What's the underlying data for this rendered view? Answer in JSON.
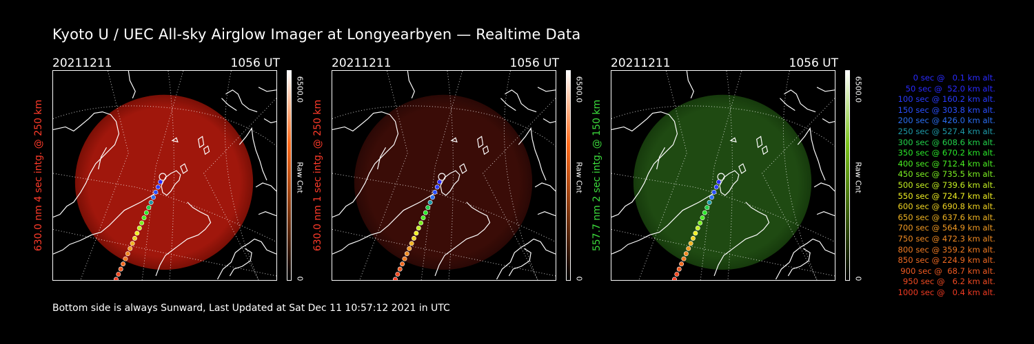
{
  "title": "Kyoto U / UEC All-sky Airglow Imager at Longyearbyen — Realtime Data",
  "footer": "Bottom side is always Sunward, Last Updated at Sat Dec 11 10:57:12 2021 in UTC",
  "panels": [
    {
      "date": "20211211",
      "time": "1056 UT",
      "ylabel": "630.0 nm 4 sec intg. @ 250 km",
      "label_color": "#ff3b2a",
      "cbar_max": "6500.0",
      "cbar_unit": "Raw Cnt",
      "cbar_min": "0",
      "cbar_top": "#ffffff",
      "cbar_mid": "#ff6a1a",
      "cbar_bottom": "#000000",
      "disk_color": "#a0170c",
      "disk_edge": "#7a0f06"
    },
    {
      "date": "20211211",
      "time": "1056 UT",
      "ylabel": "630.0 nm 1 sec intg. @ 250 km",
      "label_color": "#ff3b2a",
      "cbar_max": "6500.0",
      "cbar_unit": "Raw Cnt",
      "cbar_min": "0",
      "cbar_top": "#ffffff",
      "cbar_mid": "#ff6a1a",
      "cbar_bottom": "#000000",
      "disk_color": "#3a0c07",
      "disk_edge": "#2a0805"
    },
    {
      "date": "20211211",
      "time": "1056 UT",
      "ylabel": "557.7 nm 2 sec intg. @ 150 km",
      "label_color": "#3cdc3c",
      "cbar_max": "6500.0",
      "cbar_unit": "Raw Cnt",
      "cbar_min": "0",
      "cbar_top": "#ffffff",
      "cbar_mid": "#7ac21a",
      "cbar_bottom": "#000000",
      "disk_color": "#1f4a12",
      "disk_edge": "#163a0c"
    }
  ],
  "legend": [
    {
      "text": "   0 sec @   0.1 km alt.",
      "color": "#2a2aff"
    },
    {
      "text": "  50 sec @  52.0 km alt.",
      "color": "#2a2aff"
    },
    {
      "text": " 100 sec @ 160.2 km alt.",
      "color": "#2a3cff"
    },
    {
      "text": " 150 sec @ 303.8 km alt.",
      "color": "#2a50ff"
    },
    {
      "text": " 200 sec @ 426.0 km alt.",
      "color": "#2a6ef0"
    },
    {
      "text": " 250 sec @ 527.4 km alt.",
      "color": "#1e9aa8"
    },
    {
      "text": " 300 sec @ 608.6 km alt.",
      "color": "#22d24a"
    },
    {
      "text": " 350 sec @ 670.2 km alt.",
      "color": "#2ae82a"
    },
    {
      "text": " 400 sec @ 712.4 km alt.",
      "color": "#4aee22"
    },
    {
      "text": " 450 sec @ 735.5 km alt.",
      "color": "#7cf022"
    },
    {
      "text": " 500 sec @ 739.6 km alt.",
      "color": "#c4f022"
    },
    {
      "text": " 550 sec @ 724.7 km alt.",
      "color": "#f0f022"
    },
    {
      "text": " 600 sec @ 690.8 km alt.",
      "color": "#f0d422"
    },
    {
      "text": " 650 sec @ 637.6 km alt.",
      "color": "#f0b422"
    },
    {
      "text": " 700 sec @ 564.9 km alt.",
      "color": "#f09a22"
    },
    {
      "text": " 750 sec @ 472.3 km alt.",
      "color": "#f08a22"
    },
    {
      "text": " 800 sec @ 359.2 km alt.",
      "color": "#f07a22"
    },
    {
      "text": " 850 sec @ 224.9 km alt.",
      "color": "#f06a22"
    },
    {
      "text": " 900 sec @  68.7 km alt.",
      "color": "#f05a22"
    },
    {
      "text": " 950 sec @   6.2 km alt.",
      "color": "#f04a22"
    },
    {
      "text": "1000 sec @   0.4 km alt.",
      "color": "#f03a22"
    }
  ],
  "track_colors": [
    "#ffffff",
    "#2a2aff",
    "#2a3cff",
    "#2a50ff",
    "#2a6ef0",
    "#1e9aa8",
    "#22d24a",
    "#2ae82a",
    "#4aee22",
    "#7cf022",
    "#c4f022",
    "#f0f022",
    "#f0d422",
    "#f0b422",
    "#f09a22",
    "#f08a22",
    "#f07a22",
    "#f06a22",
    "#f05a22",
    "#f04a22",
    "#f03a22"
  ]
}
